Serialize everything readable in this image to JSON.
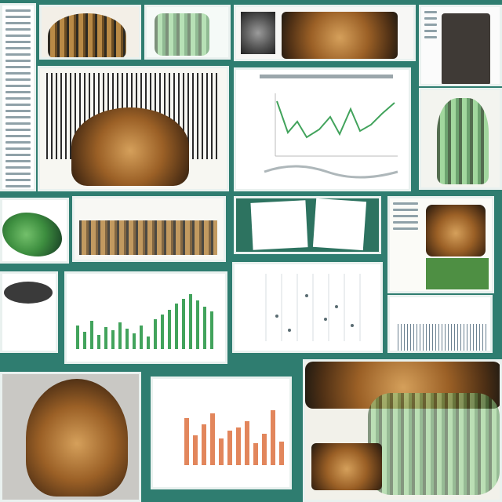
{
  "collage": {
    "background_color": "#2f7d70",
    "accent_green": "#42a35c",
    "accent_orange": "#e2865c",
    "accent_brown": "#8a5524",
    "panels": [
      "text-column-left",
      "root-specimen",
      "green-leaf-sketch",
      "tree-bark-photo",
      "device-photo",
      "radial-seed-head",
      "line-chart",
      "spine-plant-illustration",
      "green-leaf-thumb",
      "fungus-strip",
      "document-stack",
      "honeycomb-plant",
      "seed-pod",
      "green-bar-chart",
      "scatter-chart",
      "spike-chart",
      "wicker-head-sculpture",
      "orange-bar-chart",
      "roots-and-bark-photo"
    ]
  }
}
